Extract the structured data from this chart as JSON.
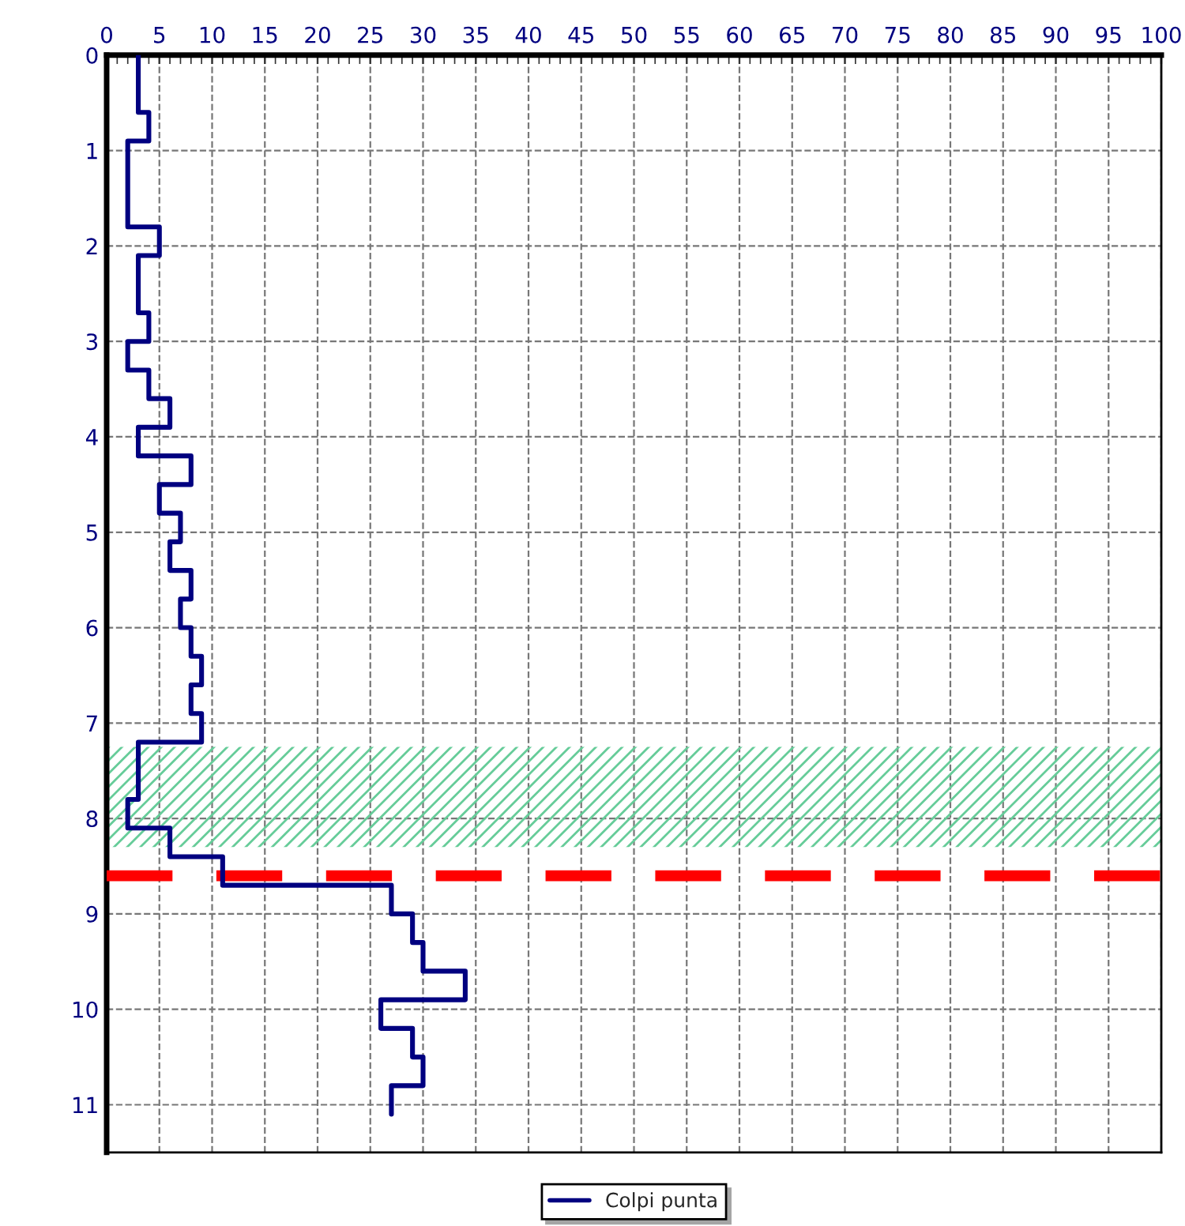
{
  "chart_data": {
    "type": "step",
    "orientation": "horizontal",
    "series": [
      {
        "name": "Colpi punta",
        "color": "#000080",
        "x": [
          0,
          0.6,
          0.9,
          1.8,
          2.1,
          2.7,
          3.0,
          3.3,
          3.6,
          3.9,
          4.2,
          4.5,
          4.8,
          5.1,
          5.4,
          5.7,
          6.0,
          6.3,
          6.6,
          6.9,
          7.2,
          7.8,
          8.1,
          8.4,
          8.7,
          9.0,
          9.3,
          9.6,
          9.9,
          10.2,
          10.5,
          10.8,
          11.1
        ],
        "values": [
          3,
          4,
          2,
          5,
          3,
          4,
          2,
          4,
          6,
          3,
          8,
          5,
          7,
          6,
          8,
          7,
          8,
          9,
          8,
          9,
          3,
          2,
          6,
          11,
          27,
          29,
          30,
          34,
          26,
          29,
          30,
          27,
          27
        ]
      }
    ],
    "xlim": [
      0,
      100
    ],
    "xticks": [
      0,
      5,
      10,
      15,
      20,
      25,
      30,
      35,
      40,
      45,
      50,
      55,
      60,
      65,
      70,
      75,
      80,
      85,
      90,
      95,
      100
    ],
    "ylim": [
      11.5,
      0
    ],
    "yticks": [
      0,
      1,
      2,
      3,
      4,
      5,
      6,
      7,
      8,
      9,
      10,
      11
    ],
    "bands": [
      {
        "axis": "y",
        "from": 7.25,
        "to": 8.3,
        "color": "#66cc99"
      }
    ],
    "ref_lines": [
      {
        "axis": "y",
        "value": 8.6,
        "color": "#ff0000",
        "line_style": "dashed"
      }
    ],
    "grid": true,
    "legend": "bottom",
    "line_style": "solid",
    "marker": "none"
  }
}
